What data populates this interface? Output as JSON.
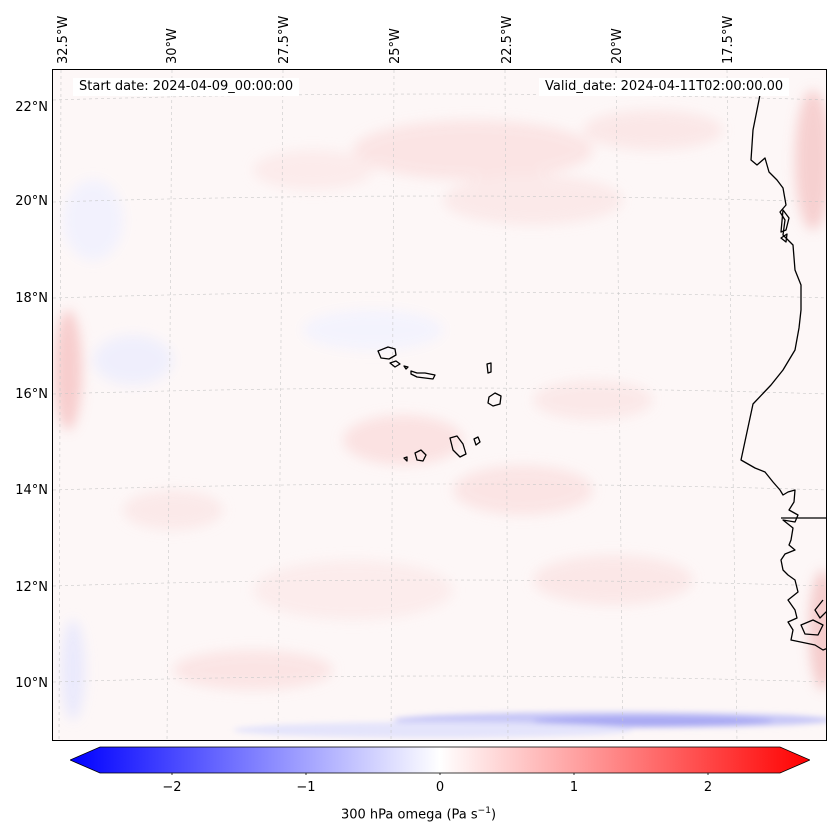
{
  "header": {
    "start_date": "Start date: 2024-04-09_00:00:00",
    "valid_date": "Valid_date: 2024-04-11T02:00:00.00"
  },
  "longitude_labels": [
    "32.5°W",
    "30°W",
    "27.5°W",
    "25°W",
    "22.5°W",
    "20°W",
    "17.5°W"
  ],
  "latitude_labels": [
    "22°N",
    "20°N",
    "18°N",
    "16°N",
    "14°N",
    "12°N",
    "10°N"
  ],
  "colorbar": {
    "title_main": "300 hPa omega (Pa s",
    "title_exp": "−1",
    "title_end": ")",
    "ticks": [
      "−2",
      "−1",
      "0",
      "1",
      "2"
    ],
    "range": [
      -2.5,
      2.5
    ],
    "colormap": "bwr",
    "min_color": "#0000ff",
    "mid_color": "#ffffff",
    "max_color": "#ff0000"
  },
  "map": {
    "background_color": "#fdf7f7",
    "coastline_color": "#000000",
    "grid_color": "#cccccc"
  }
}
